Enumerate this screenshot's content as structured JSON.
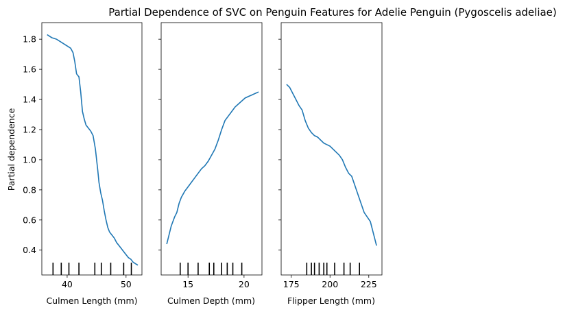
{
  "title": "Partial Dependence of SVC on Penguin Features for Adelie Penguin (Pygoscelis adeliae)",
  "ylabel": "Partial dependence",
  "line_color": "#1f77b4",
  "chart_data": [
    {
      "type": "line",
      "xlabel": "Culmen Length (mm)",
      "ylabel": "Partial dependence",
      "xlim": [
        35.7,
        52.7
      ],
      "ylim": [
        0.235,
        1.91
      ],
      "xticks": [
        40,
        50
      ],
      "yticks": [
        0.4,
        0.6,
        0.8,
        1.0,
        1.2,
        1.4,
        1.6,
        1.8
      ],
      "ytick_labels": [
        "0.4",
        "0.6",
        "0.8",
        "1.0",
        "1.2",
        "1.4",
        "1.6",
        "1.8"
      ],
      "deciles": [
        37.6,
        39.0,
        40.3,
        42.0,
        44.7,
        45.8,
        47.4,
        49.6,
        50.9
      ],
      "x": [
        36.6,
        37.4,
        38.2,
        39.0,
        39.8,
        40.6,
        41.0,
        41.3,
        41.6,
        42.0,
        42.3,
        42.6,
        42.9,
        43.2,
        43.6,
        44.0,
        44.4,
        44.8,
        45.2,
        45.4,
        45.7,
        46.0,
        46.3,
        46.6,
        46.9,
        47.2,
        47.6,
        48.0,
        48.4,
        48.8,
        49.2,
        49.6,
        50.0,
        50.4,
        50.8,
        51.2,
        51.6,
        52.0
      ],
      "y": [
        1.83,
        1.81,
        1.8,
        1.78,
        1.76,
        1.74,
        1.71,
        1.65,
        1.57,
        1.55,
        1.45,
        1.32,
        1.27,
        1.23,
        1.21,
        1.19,
        1.16,
        1.07,
        0.93,
        0.85,
        0.78,
        0.73,
        0.66,
        0.6,
        0.55,
        0.52,
        0.5,
        0.48,
        0.45,
        0.43,
        0.41,
        0.39,
        0.37,
        0.35,
        0.34,
        0.32,
        0.31,
        0.3
      ]
    },
    {
      "type": "line",
      "xlabel": "Culmen Depth (mm)",
      "xlim": [
        12.6,
        21.6
      ],
      "ylim": [
        0.235,
        1.91
      ],
      "xticks": [
        15,
        20
      ],
      "deciles": [
        14.3,
        15.0,
        15.9,
        16.9,
        17.3,
        18.0,
        18.5,
        19.0,
        19.8
      ],
      "x": [
        13.1,
        13.3,
        13.5,
        13.8,
        14.0,
        14.2,
        14.4,
        14.7,
        15.0,
        15.3,
        15.6,
        15.9,
        16.2,
        16.5,
        16.8,
        17.1,
        17.4,
        17.7,
        18.0,
        18.3,
        18.6,
        18.9,
        19.2,
        19.5,
        19.8,
        20.1,
        20.4,
        20.7,
        21.0,
        21.3
      ],
      "y": [
        0.44,
        0.5,
        0.56,
        0.62,
        0.65,
        0.71,
        0.75,
        0.79,
        0.82,
        0.85,
        0.88,
        0.91,
        0.94,
        0.96,
        0.99,
        1.03,
        1.07,
        1.13,
        1.2,
        1.26,
        1.29,
        1.32,
        1.35,
        1.37,
        1.39,
        1.41,
        1.42,
        1.43,
        1.44,
        1.45
      ]
    },
    {
      "type": "line",
      "xlabel": "Flipper Length (mm)",
      "xlim": [
        168.5,
        233.5
      ],
      "ylim": [
        0.235,
        1.91
      ],
      "xticks": [
        175,
        200,
        225
      ],
      "deciles": [
        185,
        188,
        190,
        193,
        196,
        198,
        203,
        209,
        213,
        219
      ],
      "x": [
        172,
        174,
        176,
        178,
        180,
        182,
        184,
        186,
        188,
        190,
        192,
        194,
        196,
        198,
        200,
        202,
        204,
        206,
        208,
        210,
        212,
        214,
        216,
        218,
        220,
        222,
        224,
        226,
        228,
        230
      ],
      "y": [
        1.5,
        1.48,
        1.44,
        1.4,
        1.36,
        1.33,
        1.26,
        1.21,
        1.18,
        1.16,
        1.15,
        1.13,
        1.11,
        1.1,
        1.09,
        1.07,
        1.05,
        1.03,
        1.0,
        0.95,
        0.91,
        0.89,
        0.83,
        0.77,
        0.71,
        0.65,
        0.62,
        0.59,
        0.51,
        0.43
      ]
    }
  ]
}
